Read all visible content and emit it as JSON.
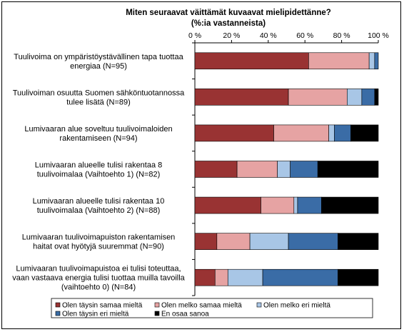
{
  "chart_data": {
    "type": "bar",
    "orientation": "horizontal",
    "stacked": true,
    "title": "Miten seuraavat väittämät kuvaavat mielipidettänne?",
    "subtitle": "(%:ia vastanneista)",
    "x_ticks": [
      "0 %",
      "20 %",
      "40 %",
      "60 %",
      "80 %",
      "100 %"
    ],
    "xlim": [
      0,
      100
    ],
    "grid": false,
    "legend_position": "bottom",
    "categories": [
      [
        "Tuulivoima on ympäristöystävällinen tapa tuottaa",
        "energiaa (N=95)"
      ],
      [
        "Tuulivoiman osuutta Suomen sähköntuotannossa",
        "tulee lisätä (N=89)"
      ],
      [
        "Lumivaaran alue soveltuu tuulivoimaloiden",
        "rakentamiseen (N=94)"
      ],
      [
        "Lumivaaran alueelle tulisi rakentaa 8",
        "tuulivoimalaa (Vaihtoehto 1) (N=82)"
      ],
      [
        "Lumivaaran alueelle tulisi rakentaa 10",
        "tuulivoimalaa (Vaihtoehto 2) (N=88)"
      ],
      [
        "Lumivaaran tuulivoimapuiston rakentamisen",
        "haitat ovat hyötyjä suuremmat (N=90)"
      ],
      [
        "Lumivaaran tuulivoimapuistoa ei tulisi toteuttaa,",
        "vaan vastaava energia tulisi tuottaa muilla tavoilla",
        "(vaihtoehto 0) (N=84)"
      ]
    ],
    "series": [
      {
        "name": "Olen täysin samaa mieltä",
        "color": "#993333",
        "values": [
          62,
          51,
          43,
          23,
          36,
          12,
          11
        ]
      },
      {
        "name": "Olen melko samaa mieltä",
        "color": "#e6a3a3",
        "values": [
          33,
          32,
          30,
          22,
          18,
          18,
          7
        ]
      },
      {
        "name": "Olen melko eri mieltä",
        "color": "#a8c6e6",
        "values": [
          3,
          8,
          3,
          7,
          2,
          21,
          19
        ]
      },
      {
        "name": "Olen täysin eri mieltä",
        "color": "#3a6ca6",
        "values": [
          2,
          7,
          9,
          15,
          13,
          27,
          41
        ]
      },
      {
        "name": "En osaa sanoa",
        "color": "#000000",
        "values": [
          0,
          2,
          15,
          33,
          31,
          22,
          22
        ]
      }
    ]
  }
}
